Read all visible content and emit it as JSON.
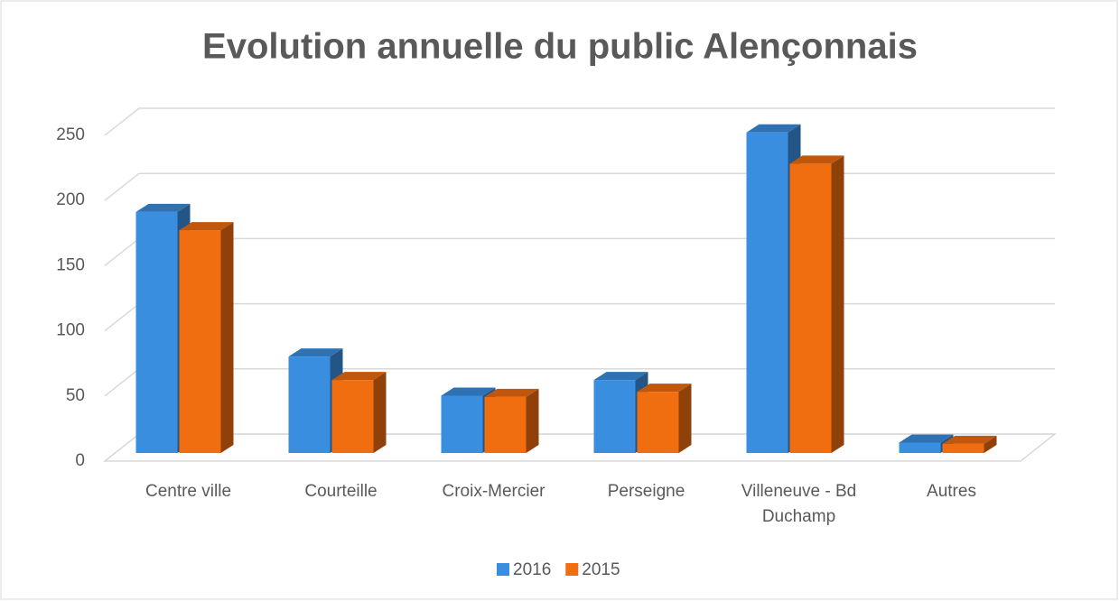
{
  "chart_data": {
    "type": "bar3d",
    "title": "Evolution annuelle du public Alençonnais",
    "categories": [
      "Centre ville",
      "Courteille",
      "Croix-Mercier",
      "Perseigne",
      "Villeneuve - Bd Duchamp",
      "Autres"
    ],
    "series": [
      {
        "name": "2016",
        "color": "#3a8ee0",
        "values": [
          185,
          74,
          44,
          56,
          246,
          8
        ]
      },
      {
        "name": "2015",
        "color": "#f06d10",
        "values": [
          171,
          56,
          43,
          47,
          222,
          7
        ]
      }
    ],
    "ylim": [
      0,
      250
    ],
    "yticks": [
      0,
      50,
      100,
      150,
      200,
      250
    ],
    "grid": true,
    "legend": "bottom"
  }
}
